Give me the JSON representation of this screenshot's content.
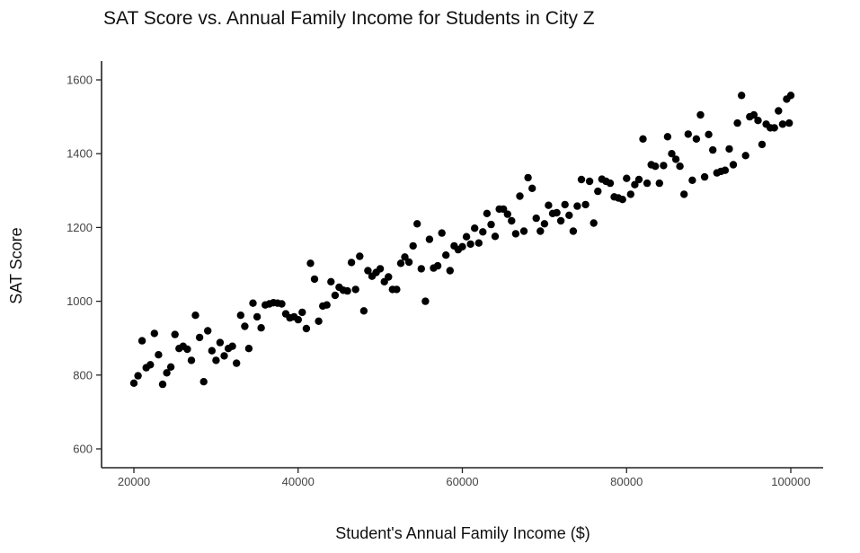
{
  "chart_data": {
    "type": "scatter",
    "title": "SAT Score vs. Annual Family Income for Students in City Z",
    "xlabel": "Student's Annual Family Income ($)",
    "ylabel": "SAT Score",
    "xlim": [
      18000,
      104000
    ],
    "ylim": [
      580,
      1650
    ],
    "x_ticks": [
      20000,
      40000,
      60000,
      80000,
      100000
    ],
    "y_ticks": [
      600,
      800,
      1000,
      1200,
      1400,
      1600
    ],
    "grid": false,
    "legend": "none",
    "point_color": "#000000",
    "points": [
      [
        20000,
        778
      ],
      [
        20500,
        798
      ],
      [
        21000,
        893
      ],
      [
        21500,
        820
      ],
      [
        22000,
        828
      ],
      [
        22500,
        913
      ],
      [
        23000,
        855
      ],
      [
        23500,
        775
      ],
      [
        24000,
        806
      ],
      [
        24500,
        822
      ],
      [
        25000,
        910
      ],
      [
        25500,
        872
      ],
      [
        26000,
        878
      ],
      [
        26500,
        870
      ],
      [
        27000,
        840
      ],
      [
        27500,
        962
      ],
      [
        28000,
        902
      ],
      [
        28500,
        782
      ],
      [
        29000,
        920
      ],
      [
        29500,
        866
      ],
      [
        30000,
        840
      ],
      [
        30500,
        888
      ],
      [
        31000,
        852
      ],
      [
        31500,
        872
      ],
      [
        32000,
        878
      ],
      [
        32500,
        832
      ],
      [
        33000,
        962
      ],
      [
        33500,
        932
      ],
      [
        34000,
        872
      ],
      [
        34500,
        995
      ],
      [
        35000,
        958
      ],
      [
        35500,
        928
      ],
      [
        36000,
        990
      ],
      [
        36500,
        993
      ],
      [
        37000,
        996
      ],
      [
        37500,
        995
      ],
      [
        38000,
        993
      ],
      [
        38500,
        966
      ],
      [
        39000,
        955
      ],
      [
        39500,
        958
      ],
      [
        40000,
        950
      ],
      [
        40500,
        970
      ],
      [
        41000,
        926
      ],
      [
        41500,
        1103
      ],
      [
        42000,
        1060
      ],
      [
        42500,
        946
      ],
      [
        43000,
        987
      ],
      [
        43500,
        990
      ],
      [
        44000,
        1053
      ],
      [
        44500,
        1016
      ],
      [
        45000,
        1038
      ],
      [
        45500,
        1030
      ],
      [
        46000,
        1028
      ],
      [
        46500,
        1105
      ],
      [
        47000,
        1032
      ],
      [
        47500,
        1122
      ],
      [
        48000,
        974
      ],
      [
        48500,
        1083
      ],
      [
        49000,
        1068
      ],
      [
        49500,
        1078
      ],
      [
        50000,
        1088
      ],
      [
        50500,
        1053
      ],
      [
        51000,
        1066
      ],
      [
        51500,
        1032
      ],
      [
        52000,
        1032
      ],
      [
        52500,
        1103
      ],
      [
        53000,
        1120
      ],
      [
        53500,
        1106
      ],
      [
        54000,
        1150
      ],
      [
        54500,
        1210
      ],
      [
        55000,
        1088
      ],
      [
        55500,
        1000
      ],
      [
        56000,
        1168
      ],
      [
        56500,
        1090
      ],
      [
        57000,
        1096
      ],
      [
        57500,
        1185
      ],
      [
        58000,
        1125
      ],
      [
        58500,
        1083
      ],
      [
        59000,
        1150
      ],
      [
        59500,
        1140
      ],
      [
        60000,
        1148
      ],
      [
        60500,
        1175
      ],
      [
        61000,
        1155
      ],
      [
        61500,
        1198
      ],
      [
        62000,
        1158
      ],
      [
        62500,
        1188
      ],
      [
        63000,
        1238
      ],
      [
        63500,
        1208
      ],
      [
        64000,
        1176
      ],
      [
        64500,
        1250
      ],
      [
        65000,
        1250
      ],
      [
        65500,
        1236
      ],
      [
        66000,
        1218
      ],
      [
        66500,
        1183
      ],
      [
        67000,
        1285
      ],
      [
        67500,
        1190
      ],
      [
        68000,
        1335
      ],
      [
        68500,
        1306
      ],
      [
        69000,
        1225
      ],
      [
        69500,
        1190
      ],
      [
        70000,
        1210
      ],
      [
        70500,
        1260
      ],
      [
        71000,
        1238
      ],
      [
        71500,
        1240
      ],
      [
        72000,
        1218
      ],
      [
        72500,
        1262
      ],
      [
        73000,
        1233
      ],
      [
        73500,
        1190
      ],
      [
        74000,
        1258
      ],
      [
        74500,
        1330
      ],
      [
        75000,
        1262
      ],
      [
        75500,
        1325
      ],
      [
        76000,
        1212
      ],
      [
        76500,
        1298
      ],
      [
        77000,
        1331
      ],
      [
        77500,
        1325
      ],
      [
        78000,
        1320
      ],
      [
        78500,
        1283
      ],
      [
        79000,
        1280
      ],
      [
        79500,
        1276
      ],
      [
        80000,
        1333
      ],
      [
        80500,
        1290
      ],
      [
        81000,
        1316
      ],
      [
        81500,
        1330
      ],
      [
        82000,
        1440
      ],
      [
        82500,
        1320
      ],
      [
        83000,
        1370
      ],
      [
        83500,
        1366
      ],
      [
        84000,
        1320
      ],
      [
        84500,
        1368
      ],
      [
        85000,
        1446
      ],
      [
        85500,
        1400
      ],
      [
        86000,
        1385
      ],
      [
        86500,
        1366
      ],
      [
        87000,
        1290
      ],
      [
        87500,
        1453
      ],
      [
        88000,
        1328
      ],
      [
        88500,
        1440
      ],
      [
        89000,
        1505
      ],
      [
        89500,
        1337
      ],
      [
        90000,
        1452
      ],
      [
        90500,
        1410
      ],
      [
        91000,
        1348
      ],
      [
        91500,
        1352
      ],
      [
        92000,
        1355
      ],
      [
        92500,
        1413
      ],
      [
        93000,
        1370
      ],
      [
        93500,
        1483
      ],
      [
        94000,
        1558
      ],
      [
        94500,
        1395
      ],
      [
        95000,
        1500
      ],
      [
        95500,
        1505
      ],
      [
        96000,
        1490
      ],
      [
        96500,
        1425
      ],
      [
        97000,
        1480
      ],
      [
        97500,
        1470
      ],
      [
        98000,
        1470
      ],
      [
        98500,
        1516
      ],
      [
        99000,
        1480
      ],
      [
        99500,
        1548
      ],
      [
        99800,
        1483
      ],
      [
        100000,
        1558
      ]
    ]
  }
}
